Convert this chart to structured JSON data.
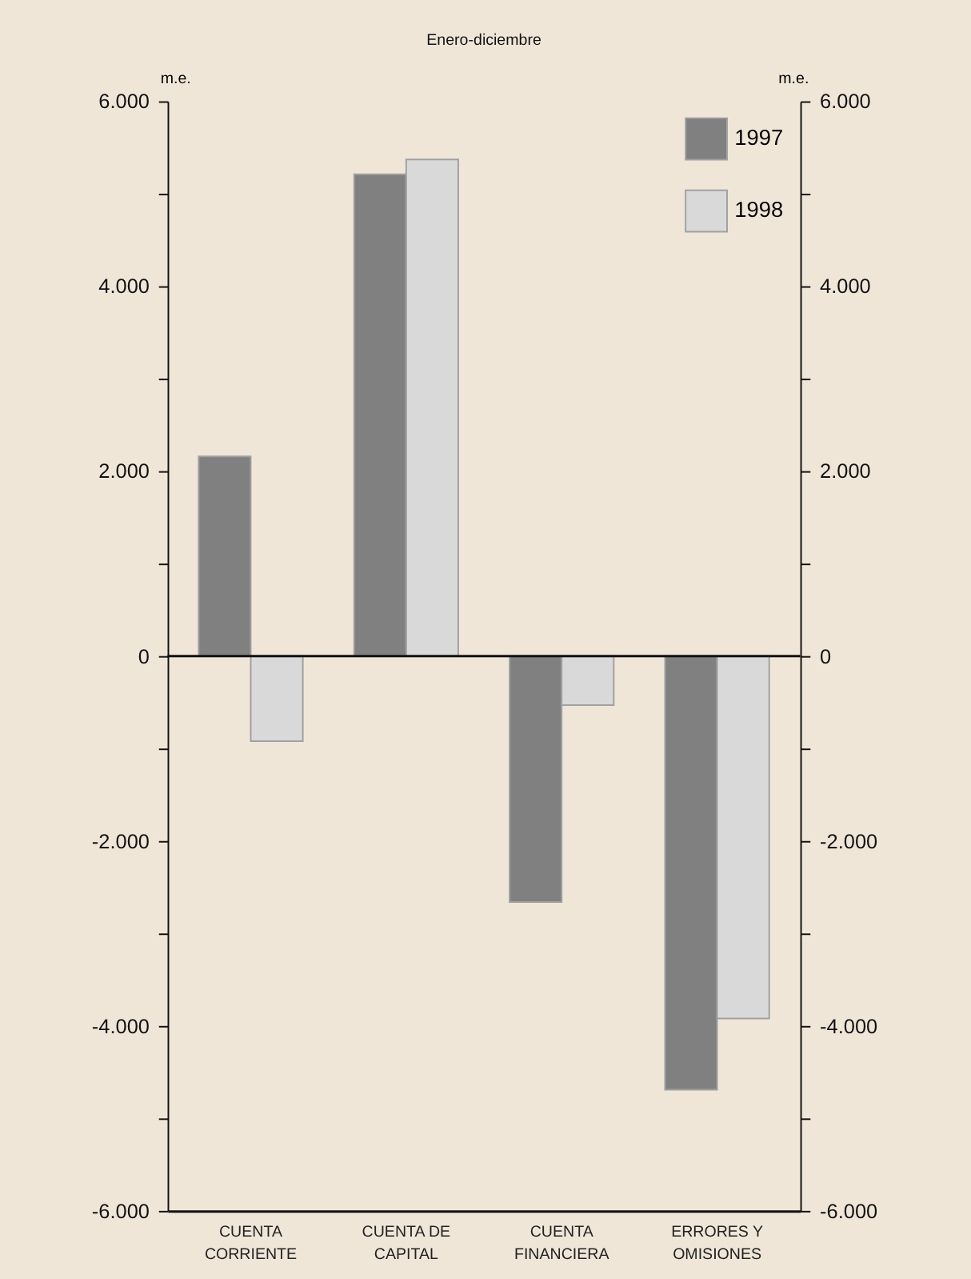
{
  "chart_data": {
    "type": "bar",
    "title": "Enero-diciembre",
    "ylabel": "m.e.",
    "y2label": "m.e.",
    "categories": [
      "CUENTA\nCORRIENTE",
      "CUENTA DE\nCAPITAL",
      "CUENTA\nFINANCIERA",
      "ERRORES Y\nOMISIONES"
    ],
    "series": [
      {
        "name": "1997",
        "color": "#808080",
        "values": [
          2160,
          5210,
          -2660,
          -4690
        ]
      },
      {
        "name": "1998",
        "color": "#d9d9d9",
        "values": [
          -920,
          5370,
          -530,
          -3920
        ]
      }
    ],
    "ylim": [
      -6000,
      6000
    ],
    "yticks": [
      {
        "value": -6000,
        "label": "-6.000"
      },
      {
        "value": -5000,
        "label": null
      },
      {
        "value": -4000,
        "label": "-4.000"
      },
      {
        "value": -3000,
        "label": null
      },
      {
        "value": -2000,
        "label": "-2.000"
      },
      {
        "value": -1000,
        "label": null
      },
      0,
      {
        "value": 1000,
        "label": null
      },
      {
        "value": 2000,
        "label": "2.000"
      },
      {
        "value": 3000,
        "label": null
      },
      {
        "value": 4000,
        "label": "4.000"
      },
      {
        "value": 5000,
        "label": null
      },
      {
        "value": 6000,
        "label": "6.000"
      }
    ],
    "y2lim": [
      -6000,
      6000
    ],
    "y2ticks": [
      {
        "value": -6000,
        "label": "-6.000"
      },
      {
        "value": -5000,
        "label": null
      },
      {
        "value": -4000,
        "label": "-4.000"
      },
      {
        "value": -3000,
        "label": null
      },
      {
        "value": -2000,
        "label": "-2.000"
      },
      {
        "value": -1000,
        "label": null
      },
      0,
      {
        "value": 1000,
        "label": null
      },
      {
        "value": 2000,
        "label": "2.000"
      },
      {
        "value": 3000,
        "label": null
      },
      {
        "value": 4000,
        "label": "4.000"
      },
      {
        "value": 5000,
        "label": null
      },
      {
        "value": 6000,
        "label": "6.000"
      }
    ],
    "ref_lines": [
      {
        "axis": "y",
        "value": 0,
        "color": "#111111"
      }
    ],
    "grid": false,
    "legend": "top right"
  }
}
